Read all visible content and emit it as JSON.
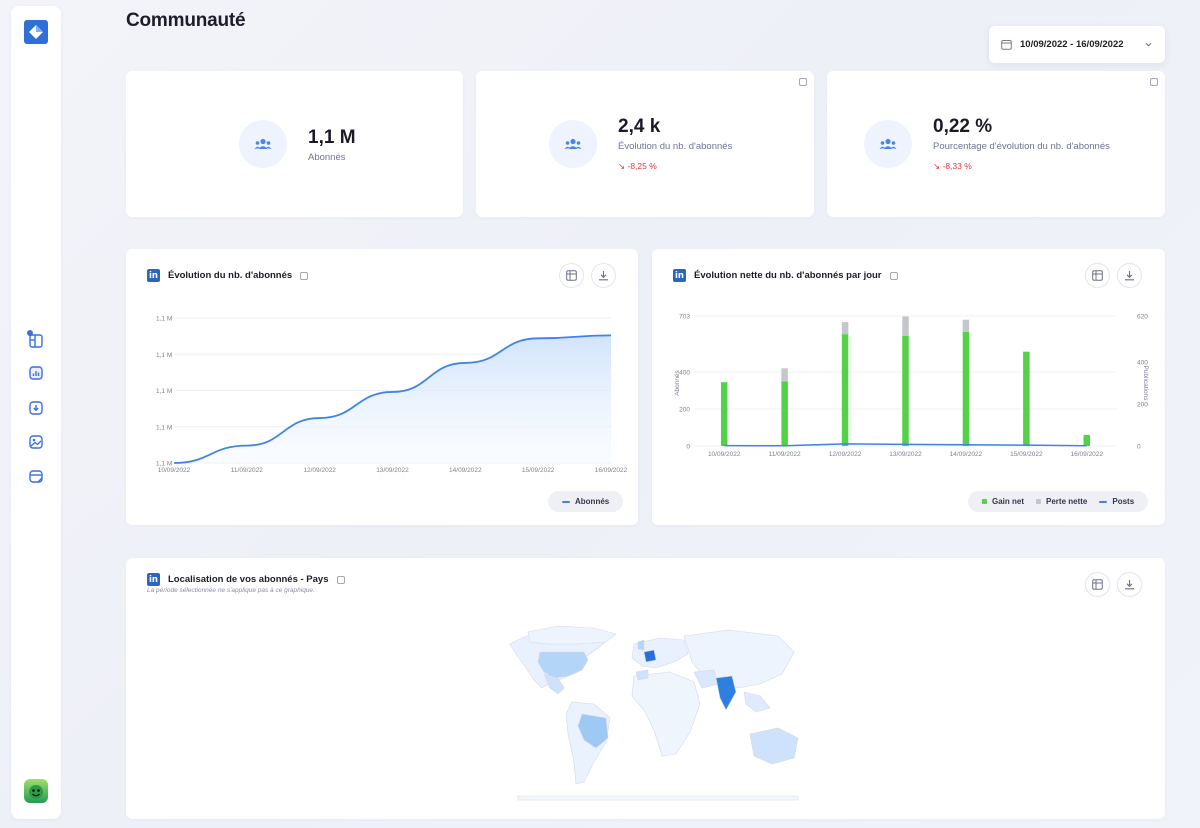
{
  "page": {
    "title": "Communauté"
  },
  "date_range": {
    "label": "10/09/2022 - 16/09/2022"
  },
  "sidebar": {
    "items": [
      {
        "name": "dashboard-icon",
        "active": false
      },
      {
        "name": "analytics-icon",
        "active": true
      },
      {
        "name": "download-icon",
        "active": false
      },
      {
        "name": "media-icon",
        "active": false
      },
      {
        "name": "calendar-icon",
        "active": false
      }
    ]
  },
  "kpis": [
    {
      "value": "1,1 M",
      "label": "Abonnés",
      "delta": ""
    },
    {
      "value": "2,4 k",
      "label": "Évolution du nb. d'abonnés",
      "delta": "-8,25 %"
    },
    {
      "value": "0,22 %",
      "label": "Pourcentage d'évolution du nb. d'abonnés",
      "delta": "-8,33 %"
    }
  ],
  "charts": {
    "followers": {
      "title": "Évolution du nb. d'abonnés",
      "legend": "Abonnés"
    },
    "net": {
      "title": "Évolution nette du nb. d'abonnés par jour",
      "legend": {
        "gain": "Gain net",
        "loss": "Perte nette",
        "posts": "Posts"
      }
    },
    "map": {
      "title": "Localisation de vos abonnés - Pays",
      "subtitle": "La période sélectionnée ne s'applique pas à ce graphique."
    }
  },
  "chart_data": [
    {
      "type": "area",
      "title": "Évolution du nb. d'abonnés",
      "x": [
        "10/09/2022",
        "11/09/2022",
        "12/09/2022",
        "13/09/2022",
        "14/09/2022",
        "15/09/2022",
        "16/09/2022"
      ],
      "y_ticks": [
        "1,1 M",
        "1,1 M",
        "1,1 M",
        "1,1 M",
        "1,1 M"
      ],
      "ylim": [
        0,
        100
      ],
      "series": [
        {
          "name": "Abonnés",
          "values": [
            0,
            12,
            31,
            49,
            69,
            86,
            88
          ]
        }
      ],
      "color": "#3f83e6",
      "legend_position": "bottom-right"
    },
    {
      "type": "bar",
      "title": "Évolution nette du nb. d'abonnés par jour",
      "categories": [
        "10/09/2022",
        "11/09/2022",
        "12/09/2022",
        "13/09/2022",
        "14/09/2022",
        "15/09/2022",
        "16/09/2022"
      ],
      "y_left": {
        "label": "Abonnés",
        "ticks": [
          "0",
          "200",
          "400",
          "703"
        ],
        "lim": [
          0,
          703
        ]
      },
      "y_right": {
        "label": "Publications",
        "ticks": [
          "0",
          "200",
          "400",
          "620"
        ],
        "lim": [
          0,
          620
        ]
      },
      "series": [
        {
          "name": "Gain net",
          "color": "#53d247",
          "values": [
            345,
            350,
            605,
            595,
            618,
            510,
            60
          ]
        },
        {
          "name": "Perte nette",
          "color": "#c4c6cb",
          "values": [
            0,
            70,
            65,
            105,
            65,
            0,
            0
          ]
        },
        {
          "name": "Posts",
          "color": "#3f83e6",
          "axis": "right",
          "values": [
            2,
            1,
            10,
            8,
            6,
            4,
            1
          ]
        }
      ],
      "legend_position": "bottom-right"
    }
  ]
}
